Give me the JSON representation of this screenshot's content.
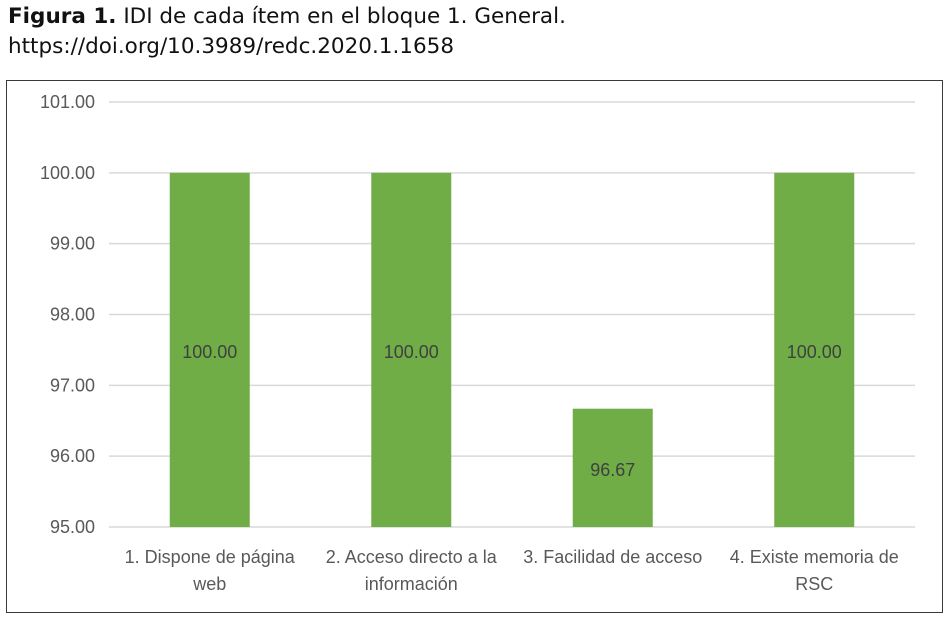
{
  "caption": {
    "label": "Figura 1.",
    "text": "IDI de cada ítem en el bloque 1. General.",
    "doi": "https://doi.org/10.3989/redc.2020.1.1658"
  },
  "colors": {
    "bar": "#70AD47",
    "grid": "#D9D9D9",
    "axis_text": "#595959"
  },
  "chart_data": {
    "type": "bar",
    "title": "",
    "xlabel": "",
    "ylabel": "",
    "categories": [
      [
        "1. Dispone de página",
        "web"
      ],
      [
        "2. Acceso directo a la",
        "información"
      ],
      [
        "3. Facilidad de acceso"
      ],
      [
        "4. Existe memoria de",
        "RSC"
      ]
    ],
    "values": [
      100.0,
      100.0,
      96.67,
      100.0
    ],
    "value_labels": [
      "100.00",
      "100.00",
      "96.67",
      "100.00"
    ],
    "yticks": [
      "95.00",
      "96.00",
      "97.00",
      "98.00",
      "99.00",
      "100.00",
      "101.00"
    ],
    "ylim": [
      95,
      101
    ],
    "grid": true,
    "legend": "none"
  }
}
